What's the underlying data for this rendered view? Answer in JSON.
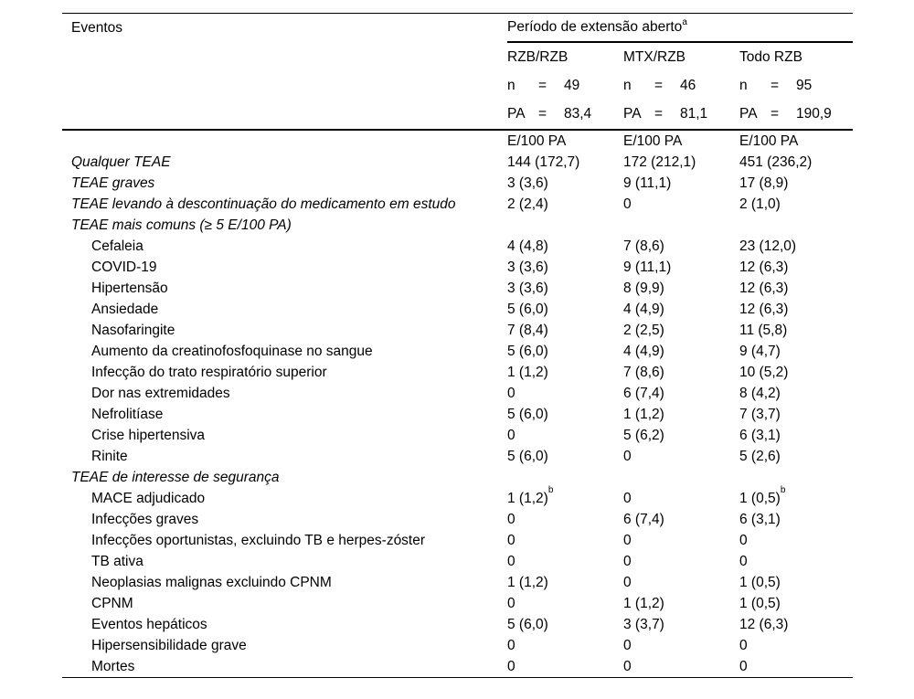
{
  "table": {
    "col1_header": "Eventos",
    "span_header": {
      "text": "Período de extensão aberto",
      "sup": "a"
    },
    "n_label": "n",
    "pa_label": "PA",
    "equals": "=",
    "groups": [
      {
        "label": "RZB/RZB",
        "n": "49",
        "pa": "83,4",
        "unit": "E/100 PA"
      },
      {
        "label": "MTX/RZB",
        "n": "46",
        "pa": "81,1",
        "unit": "E/100 PA"
      },
      {
        "label": "Todo RZB",
        "n": "95",
        "pa": "190,9",
        "unit": "E/100 PA"
      }
    ],
    "rows": [
      {
        "label": "Qualquer TEAE",
        "italic": true,
        "indent": 0,
        "values": [
          "144 (172,7)",
          "172 (212,1)",
          "451 (236,2)"
        ]
      },
      {
        "label": "TEAE graves",
        "italic": true,
        "indent": 0,
        "values": [
          "3 (3,6)",
          "9 (11,1)",
          "17 (8,9)"
        ]
      },
      {
        "label": "TEAE levando à descontinuação do medicamento em estudo",
        "italic": true,
        "indent": 0,
        "values": [
          "2 (2,4)",
          "0",
          "2 (1,0)"
        ]
      },
      {
        "label": "TEAE mais comuns (≥ 5 E/100 PA)",
        "italic": true,
        "indent": 0,
        "values": [
          "",
          "",
          ""
        ]
      },
      {
        "label": "Cefaleia",
        "indent": 1,
        "values": [
          "4 (4,8)",
          "7 (8,6)",
          "23 (12,0)"
        ]
      },
      {
        "label": "COVID-19",
        "indent": 1,
        "values": [
          "3 (3,6)",
          "9 (11,1)",
          "12 (6,3)"
        ]
      },
      {
        "label": "Hipertensão",
        "indent": 1,
        "values": [
          "3 (3,6)",
          "8 (9,9)",
          "12 (6,3)"
        ]
      },
      {
        "label": "Ansiedade",
        "indent": 1,
        "values": [
          "5 (6,0)",
          "4 (4,9)",
          "12 (6,3)"
        ]
      },
      {
        "label": "Nasofaringite",
        "indent": 1,
        "values": [
          "7 (8,4)",
          "2 (2,5)",
          "11 (5,8)"
        ]
      },
      {
        "label": "Aumento da creatinofosfoquinase no sangue",
        "indent": 1,
        "values": [
          "5 (6,0)",
          "4 (4,9)",
          "9 (4,7)"
        ]
      },
      {
        "label": "Infecção do trato respiratório superior",
        "indent": 1,
        "values": [
          "1 (1,2)",
          "7 (8,6)",
          "10 (5,2)"
        ]
      },
      {
        "label": "Dor nas extremidades",
        "indent": 1,
        "values": [
          "0",
          "6 (7,4)",
          "8 (4,2)"
        ]
      },
      {
        "label": "Nefrolitíase",
        "indent": 1,
        "values": [
          "5 (6,0)",
          "1 (1,2)",
          "7 (3,7)"
        ]
      },
      {
        "label": "Crise hipertensiva",
        "indent": 1,
        "values": [
          "0",
          "5 (6,2)",
          "6 (3,1)"
        ]
      },
      {
        "label": "Rinite",
        "indent": 1,
        "values": [
          "5 (6,0)",
          "0",
          "5 (2,6)"
        ]
      },
      {
        "label": "TEAE de interesse de segurança",
        "italic": true,
        "indent": 0,
        "values": [
          "",
          "",
          ""
        ]
      },
      {
        "label": "MACE adjudicado",
        "indent": 1,
        "values": [
          {
            "text": "1 (1,2)",
            "sup": "b"
          },
          "0",
          {
            "text": "1 (0,5)",
            "sup": "b"
          }
        ]
      },
      {
        "label": "Infecções graves",
        "indent": 1,
        "values": [
          "0",
          "6 (7,4)",
          "6 (3,1)"
        ]
      },
      {
        "label": "Infecções oportunistas, excluindo TB e herpes-zóster",
        "indent": 1,
        "values": [
          "0",
          "0",
          "0"
        ]
      },
      {
        "label": "TB ativa",
        "indent": 1,
        "values": [
          "0",
          "0",
          "0"
        ]
      },
      {
        "label": "Neoplasias malignas excluindo CPNM",
        "indent": 1,
        "values": [
          "1 (1,2)",
          "0",
          "1 (0,5)"
        ]
      },
      {
        "label": "CPNM",
        "indent": 1,
        "values": [
          "0",
          "1 (1,2)",
          "1 (0,5)"
        ]
      },
      {
        "label": "Eventos hepáticos",
        "indent": 1,
        "values": [
          "5 (6,0)",
          "3 (3,7)",
          "12 (6,3)"
        ]
      },
      {
        "label": "Hipersensibilidade grave",
        "indent": 1,
        "values": [
          "0",
          "0",
          "0"
        ]
      },
      {
        "label": "Mortes",
        "indent": 1,
        "values": [
          "0",
          "0",
          "0"
        ]
      }
    ]
  }
}
